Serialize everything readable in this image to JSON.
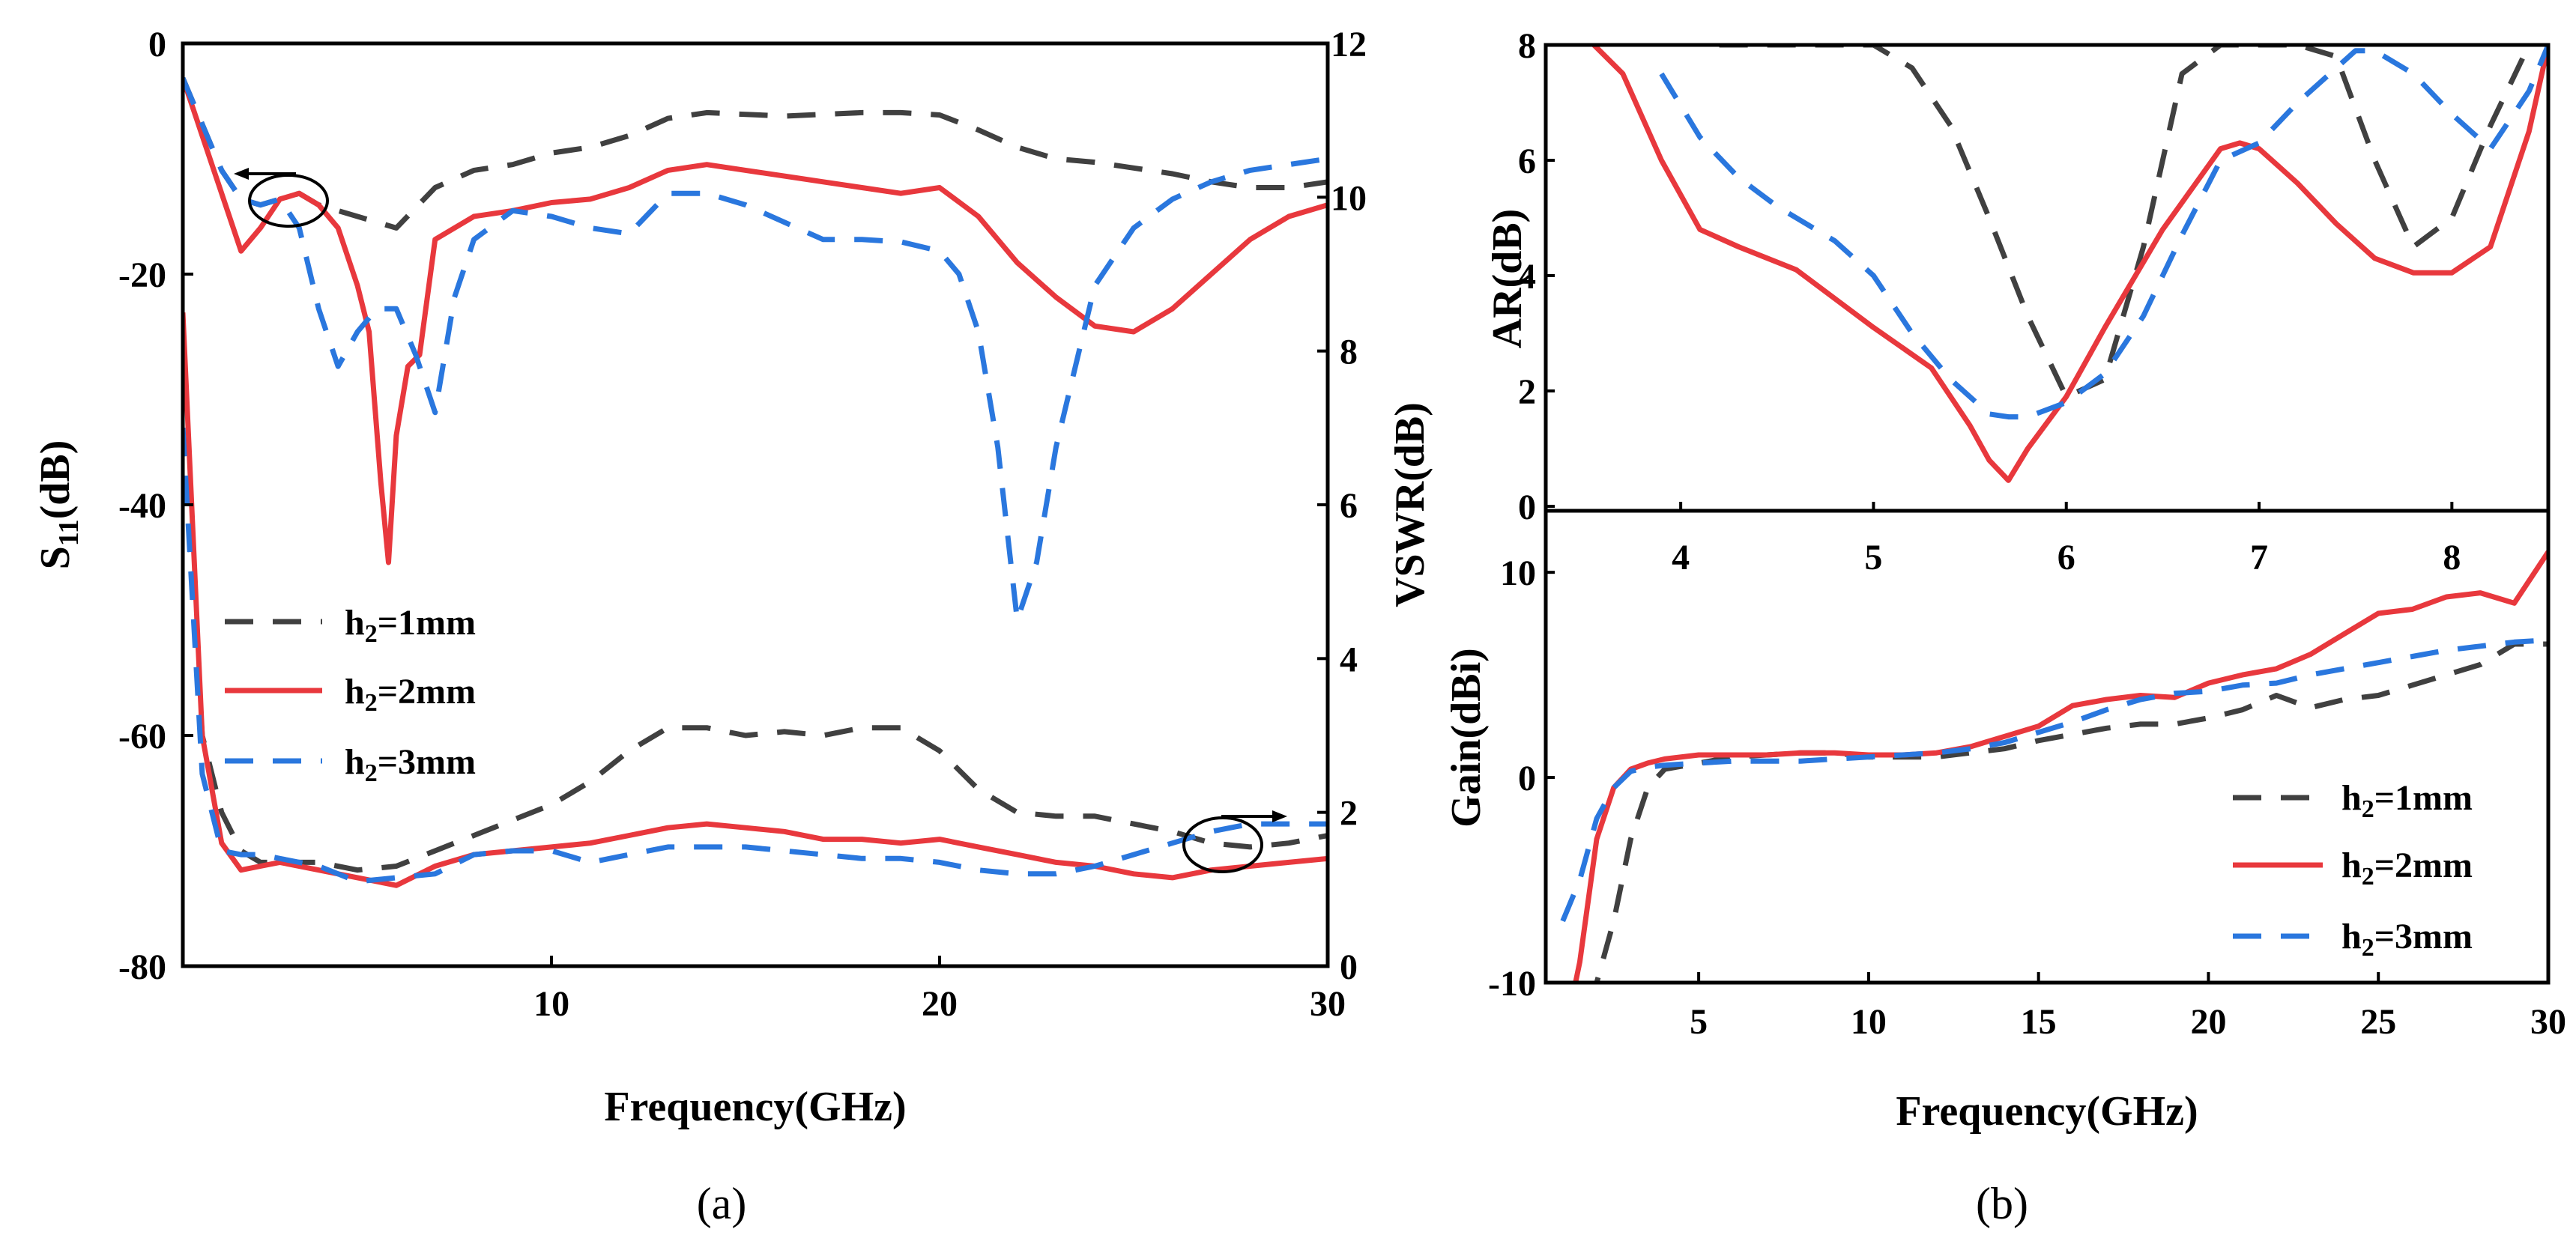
{
  "chart_data": [
    {
      "type": "line",
      "panel_label": "(a)",
      "xlabel": "Frequency(GHz)",
      "ylabel_left": "S11(dB)",
      "ylabel_right": "VSWR(dB)",
      "xlim": [
        0.5,
        30
      ],
      "ylim_left": [
        -80,
        0
      ],
      "ylim_right": [
        0,
        12
      ],
      "xticks": [
        10,
        20,
        30
      ],
      "yticks_left": [
        0,
        -20,
        -40,
        -60,
        -80
      ],
      "yticks_right": [
        0,
        2,
        4,
        6,
        8,
        10,
        12
      ],
      "legend_placement": "middle-left",
      "series": [
        {
          "name": "h2=1mm",
          "axis": "left",
          "x": [
            0.5,
            1,
            1.5,
            2,
            2.5,
            3,
            3.5,
            4,
            5,
            6,
            7,
            8,
            9,
            10,
            11,
            12,
            13,
            14,
            16,
            18,
            19,
            20,
            21,
            22,
            23,
            24,
            25,
            26,
            27,
            28,
            29,
            30
          ],
          "y": [
            -3,
            -7,
            -11,
            -13.5,
            -14,
            -13.5,
            -13,
            -14,
            -15,
            -16,
            -12.5,
            -11,
            -10.5,
            -9.5,
            -9,
            -8,
            -6.5,
            -6,
            -6.3,
            -6,
            -6,
            -6.2,
            -7.5,
            -9,
            -10,
            -10.3,
            -10.8,
            -11.3,
            -12,
            -12.5,
            -12.5,
            -12
          ]
        },
        {
          "name": "h2=2mm",
          "axis": "left",
          "x": [
            0.5,
            1,
            1.5,
            2,
            2.5,
            3,
            3.5,
            4,
            4.5,
            5,
            5.3,
            5.6,
            5.8,
            6,
            6.3,
            6.6,
            7,
            8,
            9,
            10,
            11,
            12,
            13,
            14,
            15,
            16,
            17,
            18,
            19,
            20,
            21,
            22,
            23,
            24,
            25,
            26,
            27,
            28,
            29,
            30
          ],
          "y": [
            -3,
            -8,
            -13,
            -18,
            -16,
            -13.5,
            -13,
            -14,
            -16,
            -21,
            -25,
            -38,
            -45,
            -34,
            -28,
            -27,
            -17,
            -15,
            -14.5,
            -13.8,
            -13.5,
            -12.5,
            -11,
            -10.5,
            -11,
            -11.5,
            -12,
            -12.5,
            -13,
            -12.5,
            -15,
            -19,
            -22,
            -24.5,
            -25,
            -23,
            -20,
            -17,
            -15,
            -14
          ]
        },
        {
          "name": "h2=3mm",
          "axis": "left",
          "x": [
            0.5,
            1,
            1.5,
            2,
            2.5,
            3,
            3.5,
            4,
            4.5,
            5,
            5.5,
            6,
            6.5,
            7,
            7.5,
            8,
            9,
            10,
            11,
            12,
            13,
            14,
            15,
            16,
            17,
            18,
            19,
            20,
            20.5,
            21,
            21.5,
            22,
            22.5,
            23,
            23.5,
            24,
            25,
            26,
            27,
            28,
            29,
            30
          ],
          "y": [
            -3,
            -7,
            -11,
            -13.5,
            -14,
            -13.5,
            -16,
            -23,
            -28,
            -25,
            -23,
            -23,
            -27,
            -32,
            -22,
            -17,
            -14.5,
            -15,
            -16,
            -16.5,
            -13,
            -13,
            -14,
            -15.5,
            -17,
            -17,
            -17.2,
            -18,
            -20,
            -25,
            -35,
            -50,
            -45,
            -35,
            -28,
            -21,
            -16,
            -13.5,
            -12,
            -11,
            -10.5,
            -10
          ]
        },
        {
          "name": "h2=1mm",
          "axis": "right",
          "x": [
            0.5,
            1,
            1.5,
            2,
            2.5,
            3,
            4,
            5,
            6,
            7,
            8,
            9,
            10,
            11,
            12,
            13,
            14,
            15,
            16,
            17,
            18,
            19,
            20,
            21,
            22,
            23,
            24,
            25,
            26,
            27,
            28,
            29,
            30
          ],
          "y": [
            7,
            3,
            2,
            1.5,
            1.35,
            1.35,
            1.35,
            1.25,
            1.3,
            1.5,
            1.7,
            1.9,
            2.1,
            2.4,
            2.8,
            3.1,
            3.1,
            3,
            3.05,
            3,
            3.1,
            3.1,
            2.8,
            2.3,
            2,
            1.95,
            1.95,
            1.85,
            1.75,
            1.6,
            1.55,
            1.6,
            1.7
          ]
        },
        {
          "name": "h2=2mm",
          "axis": "right",
          "x": [
            0.5,
            1,
            1.5,
            2,
            2.5,
            3,
            4,
            5,
            6,
            7,
            8,
            9,
            10,
            11,
            12,
            13,
            14,
            15,
            16,
            17,
            18,
            19,
            20,
            21,
            22,
            23,
            24,
            25,
            26,
            27,
            28,
            29,
            30
          ],
          "y": [
            8.5,
            3,
            1.6,
            1.25,
            1.3,
            1.35,
            1.25,
            1.15,
            1.05,
            1.3,
            1.45,
            1.5,
            1.55,
            1.6,
            1.7,
            1.8,
            1.85,
            1.8,
            1.75,
            1.65,
            1.65,
            1.6,
            1.65,
            1.55,
            1.45,
            1.35,
            1.3,
            1.2,
            1.15,
            1.25,
            1.3,
            1.35,
            1.4
          ]
        },
        {
          "name": "h2=3mm",
          "axis": "right",
          "x": [
            0.5,
            1,
            1.5,
            2,
            2.5,
            3,
            4,
            5,
            6,
            7,
            8,
            9,
            10,
            11,
            12,
            13,
            14,
            15,
            16,
            17,
            18,
            19,
            20,
            21,
            22,
            23,
            24,
            25,
            26,
            27,
            28,
            29,
            30
          ],
          "y": [
            7,
            2.5,
            1.5,
            1.45,
            1.45,
            1.4,
            1.3,
            1.1,
            1.15,
            1.2,
            1.45,
            1.5,
            1.5,
            1.35,
            1.45,
            1.55,
            1.55,
            1.55,
            1.5,
            1.45,
            1.4,
            1.4,
            1.35,
            1.25,
            1.2,
            1.2,
            1.3,
            1.45,
            1.6,
            1.75,
            1.85,
            1.85,
            1.85
          ]
        }
      ]
    },
    {
      "type": "line",
      "panel_label": "(b)",
      "ylabel": "AR(dB)",
      "xlim": [
        3.3,
        8.5
      ],
      "ylim": [
        0,
        8
      ],
      "xticks": [
        4,
        5,
        6,
        7,
        8
      ],
      "yticks": [
        0,
        2,
        4,
        6,
        8
      ],
      "series": [
        {
          "name": "h2=1mm",
          "x": [
            4.2,
            4.5,
            4.8,
            5,
            5.2,
            5.4,
            5.6,
            5.8,
            6,
            6.2,
            6.4,
            6.6,
            6.8,
            7,
            7.2,
            7.4,
            7.6,
            7.8,
            8,
            8.2,
            8.4
          ],
          "y": [
            8,
            8,
            8,
            8,
            7.6,
            6.6,
            5,
            3.3,
            1.9,
            2.2,
            4.5,
            7.5,
            8,
            8,
            8,
            7.8,
            6,
            4.5,
            5,
            6.6,
            8
          ]
        },
        {
          "name": "h2=2mm",
          "x": [
            3.55,
            3.7,
            3.9,
            4.1,
            4.3,
            4.6,
            5,
            5.3,
            5.5,
            5.6,
            5.7,
            5.8,
            6,
            6.2,
            6.5,
            6.8,
            6.9,
            7,
            7.2,
            7.4,
            7.6,
            7.8,
            8,
            8.2,
            8.4,
            8.5
          ],
          "y": [
            8,
            7.5,
            6,
            4.8,
            4.5,
            4.1,
            3.1,
            2.4,
            1.4,
            0.8,
            0.45,
            1,
            1.9,
            3.1,
            4.8,
            6.2,
            6.3,
            6.2,
            5.6,
            4.9,
            4.3,
            4.05,
            4.05,
            4.5,
            6.5,
            8
          ]
        },
        {
          "name": "h2=3mm",
          "x": [
            3.9,
            4.1,
            4.3,
            4.5,
            4.8,
            5,
            5.2,
            5.4,
            5.6,
            5.7,
            5.8,
            6,
            6.2,
            6.4,
            6.6,
            6.8,
            7,
            7.2,
            7.4,
            7.5,
            7.6,
            7.8,
            8,
            8.2,
            8.4,
            8.5
          ],
          "y": [
            7.5,
            6.4,
            5.7,
            5.2,
            4.6,
            4,
            3,
            2.2,
            1.6,
            1.55,
            1.55,
            1.8,
            2.3,
            3.3,
            4.7,
            6,
            6.3,
            7,
            7.6,
            7.9,
            7.9,
            7.5,
            6.8,
            6.2,
            7.2,
            8
          ]
        }
      ]
    },
    {
      "type": "line",
      "xlabel": "Frequency(GHz)",
      "ylabel": "Gain(dBi)",
      "xlim": [
        0.5,
        30
      ],
      "ylim": [
        -10,
        13
      ],
      "xticks": [
        5,
        10,
        15,
        20,
        25,
        30
      ],
      "yticks": [
        -10,
        0,
        10
      ],
      "legend_placement": "bottom-right",
      "series": [
        {
          "name": "h2=1mm",
          "x": [
            1,
            1.5,
            2,
            2.5,
            3,
            3.5,
            4,
            5,
            6,
            7,
            8,
            9,
            10,
            11,
            12,
            13,
            14,
            15,
            16,
            17,
            18,
            19,
            20,
            21,
            22,
            23,
            24,
            25,
            26,
            27,
            28,
            29,
            30
          ],
          "y": [
            -13,
            -12,
            -10,
            -7,
            -3,
            -0.5,
            0.4,
            0.7,
            1,
            1.1,
            1.2,
            1.2,
            1,
            1,
            1,
            1.2,
            1.4,
            1.8,
            2.1,
            2.4,
            2.6,
            2.6,
            2.9,
            3.3,
            4,
            3.4,
            3.8,
            4,
            4.5,
            5,
            5.5,
            6.5,
            6.5
          ]
        },
        {
          "name": "h2=2mm",
          "x": [
            1,
            1.5,
            2,
            2.5,
            3,
            3.5,
            4,
            5,
            6,
            7,
            8,
            9,
            10,
            11,
            12,
            13,
            14,
            15,
            16,
            17,
            18,
            19,
            20,
            21,
            22,
            23,
            24,
            25,
            26,
            27,
            28,
            29,
            30
          ],
          "y": [
            -13,
            -9,
            -3,
            -0.5,
            0.4,
            0.7,
            0.9,
            1.1,
            1.1,
            1.1,
            1.2,
            1.2,
            1.1,
            1.1,
            1.2,
            1.5,
            2,
            2.5,
            3.5,
            3.8,
            4,
            3.9,
            4.6,
            5,
            5.3,
            6,
            7,
            8,
            8.2,
            8.8,
            9,
            8.5,
            11
          ]
        },
        {
          "name": "h2=3mm",
          "x": [
            1,
            1.5,
            2,
            2.5,
            3,
            3.5,
            4,
            5,
            6,
            7,
            8,
            9,
            10,
            11,
            12,
            13,
            14,
            15,
            16,
            17,
            18,
            19,
            20,
            21,
            22,
            23,
            24,
            25,
            26,
            27,
            28,
            29,
            30
          ],
          "y": [
            -7,
            -5,
            -2,
            -0.5,
            0.3,
            0.5,
            0.6,
            0.7,
            0.8,
            0.8,
            0.8,
            0.9,
            1,
            1.1,
            1.2,
            1.4,
            1.7,
            2.2,
            2.7,
            3.3,
            3.8,
            4.1,
            4.2,
            4.5,
            4.6,
            5,
            5.3,
            5.6,
            5.9,
            6.2,
            6.4,
            6.6,
            6.7
          ]
        }
      ]
    }
  ],
  "legend_labels": {
    "s1": {
      "main": "h",
      "sub": "2",
      "rest": "=1mm"
    },
    "s2": {
      "main": "h",
      "sub": "2",
      "rest": "=2mm"
    },
    "s3": {
      "main": "h",
      "sub": "2",
      "rest": "=3mm"
    }
  },
  "axis_text": {
    "a_xlabel": "Frequency(GHz)",
    "a_ylabel_left_main": "S",
    "a_ylabel_left_sub": "11",
    "a_ylabel_left_rest": "(dB)",
    "a_ylabel_right": "VSWR(dB)",
    "b_ar_ylabel": "AR(dB)",
    "b_gain_ylabel": "Gain(dBi)",
    "b_xlabel": "Frequency(GHz)"
  },
  "captions": {
    "a": "(a)",
    "b": "(b)"
  },
  "colors": {
    "h2_1mm": "#404040",
    "h2_2mm": "#e8383d",
    "h2_3mm": "#2a77de"
  }
}
